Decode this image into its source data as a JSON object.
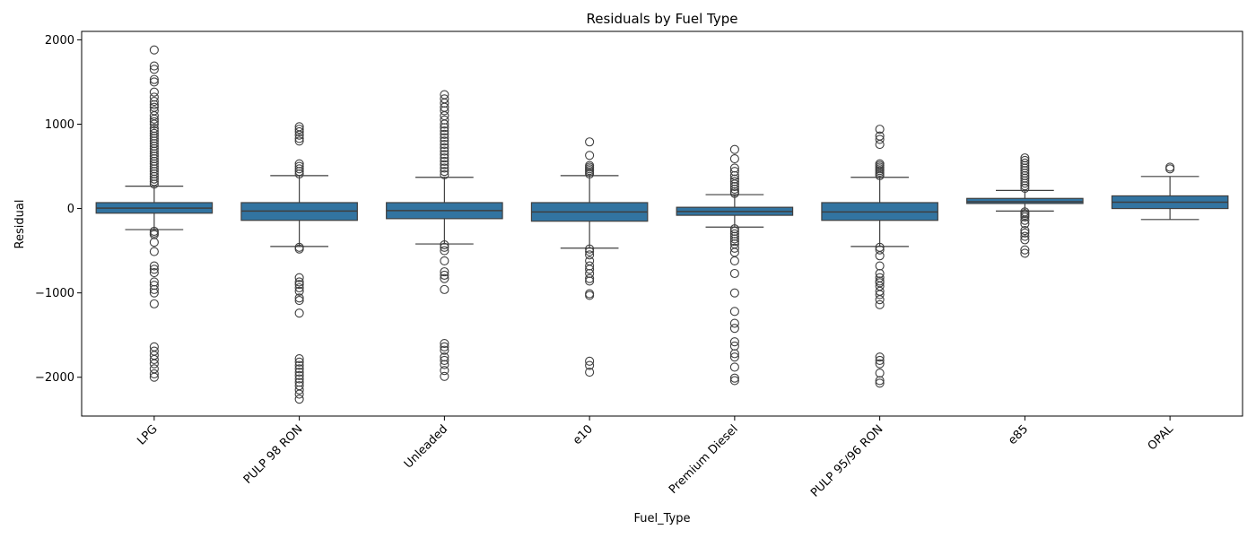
{
  "chart_data": {
    "type": "box",
    "title": "Residuals by Fuel Type",
    "xlabel": "Fuel_Type",
    "ylabel": "Residual",
    "ylim": [
      -2460,
      2100
    ],
    "yticks": [
      -2000,
      -1000,
      0,
      1000,
      2000
    ],
    "ytick_labels": [
      "−2000",
      "−1000",
      "0",
      "1000",
      "2000"
    ],
    "box_color": "#3274a1",
    "line_color": "#3f3f3f",
    "grid": false,
    "categories": [
      "LPG",
      "PULP 98 RON",
      "Unleaded",
      "e10",
      "Premium Diesel",
      "PULP 95/96 RON",
      "e85",
      "OPAL"
    ],
    "boxes": [
      {
        "category": "LPG",
        "whisker_low": -250,
        "q1": -55,
        "median": 5,
        "q3": 70,
        "whisker_high": 265,
        "outliers": [
          1880,
          1690,
          1650,
          1530,
          1500,
          1380,
          1320,
          1270,
          1230,
          1200,
          1160,
          1100,
          1060,
          1030,
          1000,
          950,
          920,
          890,
          860,
          830,
          800,
          770,
          740,
          710,
          680,
          650,
          620,
          590,
          560,
          530,
          500,
          470,
          440,
          410,
          380,
          350,
          320,
          290,
          -270,
          -290,
          -310,
          -400,
          -510,
          -680,
          -720,
          -760,
          -870,
          -910,
          -960,
          -1000,
          -1130,
          -1640,
          -1690,
          -1740,
          -1790,
          -1840,
          -1900,
          -1960,
          -2000
        ]
      },
      {
        "category": "PULP 98 RON",
        "whisker_low": -450,
        "q1": -140,
        "median": -30,
        "q3": 70,
        "whisker_high": 390,
        "outliers": [
          970,
          940,
          910,
          870,
          830,
          800,
          530,
          500,
          470,
          440,
          410,
          -460,
          -480,
          -820,
          -870,
          -900,
          -940,
          -980,
          -1060,
          -1090,
          -1240,
          -1780,
          -1820,
          -1860,
          -1900,
          -1940,
          -1980,
          -2020,
          -2060,
          -2100,
          -2150,
          -2200,
          -2260
        ]
      },
      {
        "category": "Unleaded",
        "whisker_low": -420,
        "q1": -120,
        "median": -25,
        "q3": 70,
        "whisker_high": 370,
        "outliers": [
          1350,
          1300,
          1250,
          1200,
          1160,
          1100,
          1050,
          1000,
          960,
          920,
          880,
          840,
          800,
          760,
          720,
          680,
          640,
          600,
          560,
          520,
          480,
          440,
          400,
          -430,
          -460,
          -500,
          -620,
          -750,
          -790,
          -830,
          -960,
          -1600,
          -1640,
          -1680,
          -1760,
          -1800,
          -1850,
          -1920,
          -1990
        ]
      },
      {
        "category": "e10",
        "whisker_low": -470,
        "q1": -150,
        "median": -40,
        "q3": 70,
        "whisker_high": 390,
        "outliers": [
          790,
          630,
          510,
          490,
          470,
          450,
          430,
          410,
          -480,
          -510,
          -550,
          -620,
          -680,
          -720,
          -770,
          -830,
          -860,
          -1010,
          -1030,
          -1810,
          -1860,
          -1940
        ]
      },
      {
        "category": "Premium Diesel",
        "whisker_low": -220,
        "q1": -80,
        "median": -35,
        "q3": 15,
        "whisker_high": 165,
        "outliers": [
          700,
          590,
          480,
          440,
          390,
          350,
          320,
          290,
          260,
          230,
          200,
          180,
          -240,
          -270,
          -300,
          -330,
          -360,
          -390,
          -420,
          -470,
          -520,
          -620,
          -770,
          -1000,
          -1220,
          -1360,
          -1420,
          -1580,
          -1630,
          -1720,
          -1760,
          -1880,
          -2010,
          -2040
        ]
      },
      {
        "category": "PULP 95/96 RON",
        "whisker_low": -450,
        "q1": -140,
        "median": -40,
        "q3": 70,
        "whisker_high": 370,
        "outliers": [
          940,
          860,
          820,
          760,
          530,
          510,
          490,
          470,
          450,
          430,
          410,
          390,
          -460,
          -490,
          -560,
          -680,
          -770,
          -820,
          -860,
          -880,
          -920,
          -980,
          -1020,
          -1080,
          -1140,
          -1760,
          -1800,
          -1840,
          -1950,
          -2040,
          -2070
        ]
      },
      {
        "category": "e85",
        "whisker_low": -30,
        "q1": 60,
        "median": 80,
        "q3": 120,
        "whisker_high": 215,
        "outliers": [
          600,
          570,
          540,
          510,
          480,
          450,
          420,
          390,
          360,
          330,
          300,
          270,
          240,
          -40,
          -60,
          -80,
          -100,
          -140,
          -180,
          -260,
          -290,
          -330,
          -370,
          -490,
          -530
        ]
      },
      {
        "category": "OPAL",
        "whisker_low": -130,
        "q1": 0,
        "median": 75,
        "q3": 150,
        "whisker_high": 380,
        "outliers": [
          490,
          470
        ]
      }
    ]
  }
}
